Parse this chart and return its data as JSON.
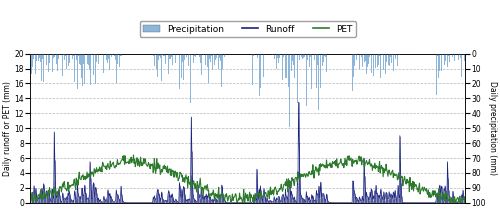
{
  "left_yticks": [
    0,
    2,
    4,
    6,
    8,
    10,
    12,
    14,
    16,
    18,
    20
  ],
  "right_yticks": [
    0,
    10,
    20,
    30,
    40,
    50,
    60,
    70,
    80,
    90,
    100
  ],
  "left_ylabel": "Daily runoff or PET (mm)",
  "right_ylabel": "Daily precipitation (mm)",
  "precip_color": "#7aaad4",
  "runoff_color": "#1a237e",
  "pet_color": "#2d7a2d",
  "background_color": "#ffffff",
  "grid_color": "#999999",
  "n_days": 730,
  "seed": 42,
  "axis_fontsize": 5.5,
  "tick_fontsize": 5.5,
  "legend_fontsize": 6.5
}
